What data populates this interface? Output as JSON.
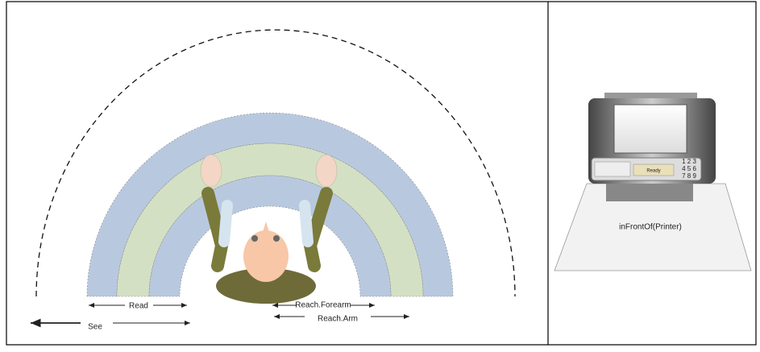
{
  "labels": {
    "read": "Read",
    "see": "See",
    "reach_forearm": "Reach.Forearm",
    "reach_arm": "Reach.Arm"
  },
  "printer": {
    "caption": "inFrontOf(Printer)",
    "display": "Ready",
    "keypad": [
      "1 2 3",
      "4 5 6",
      "7 8 9"
    ]
  }
}
